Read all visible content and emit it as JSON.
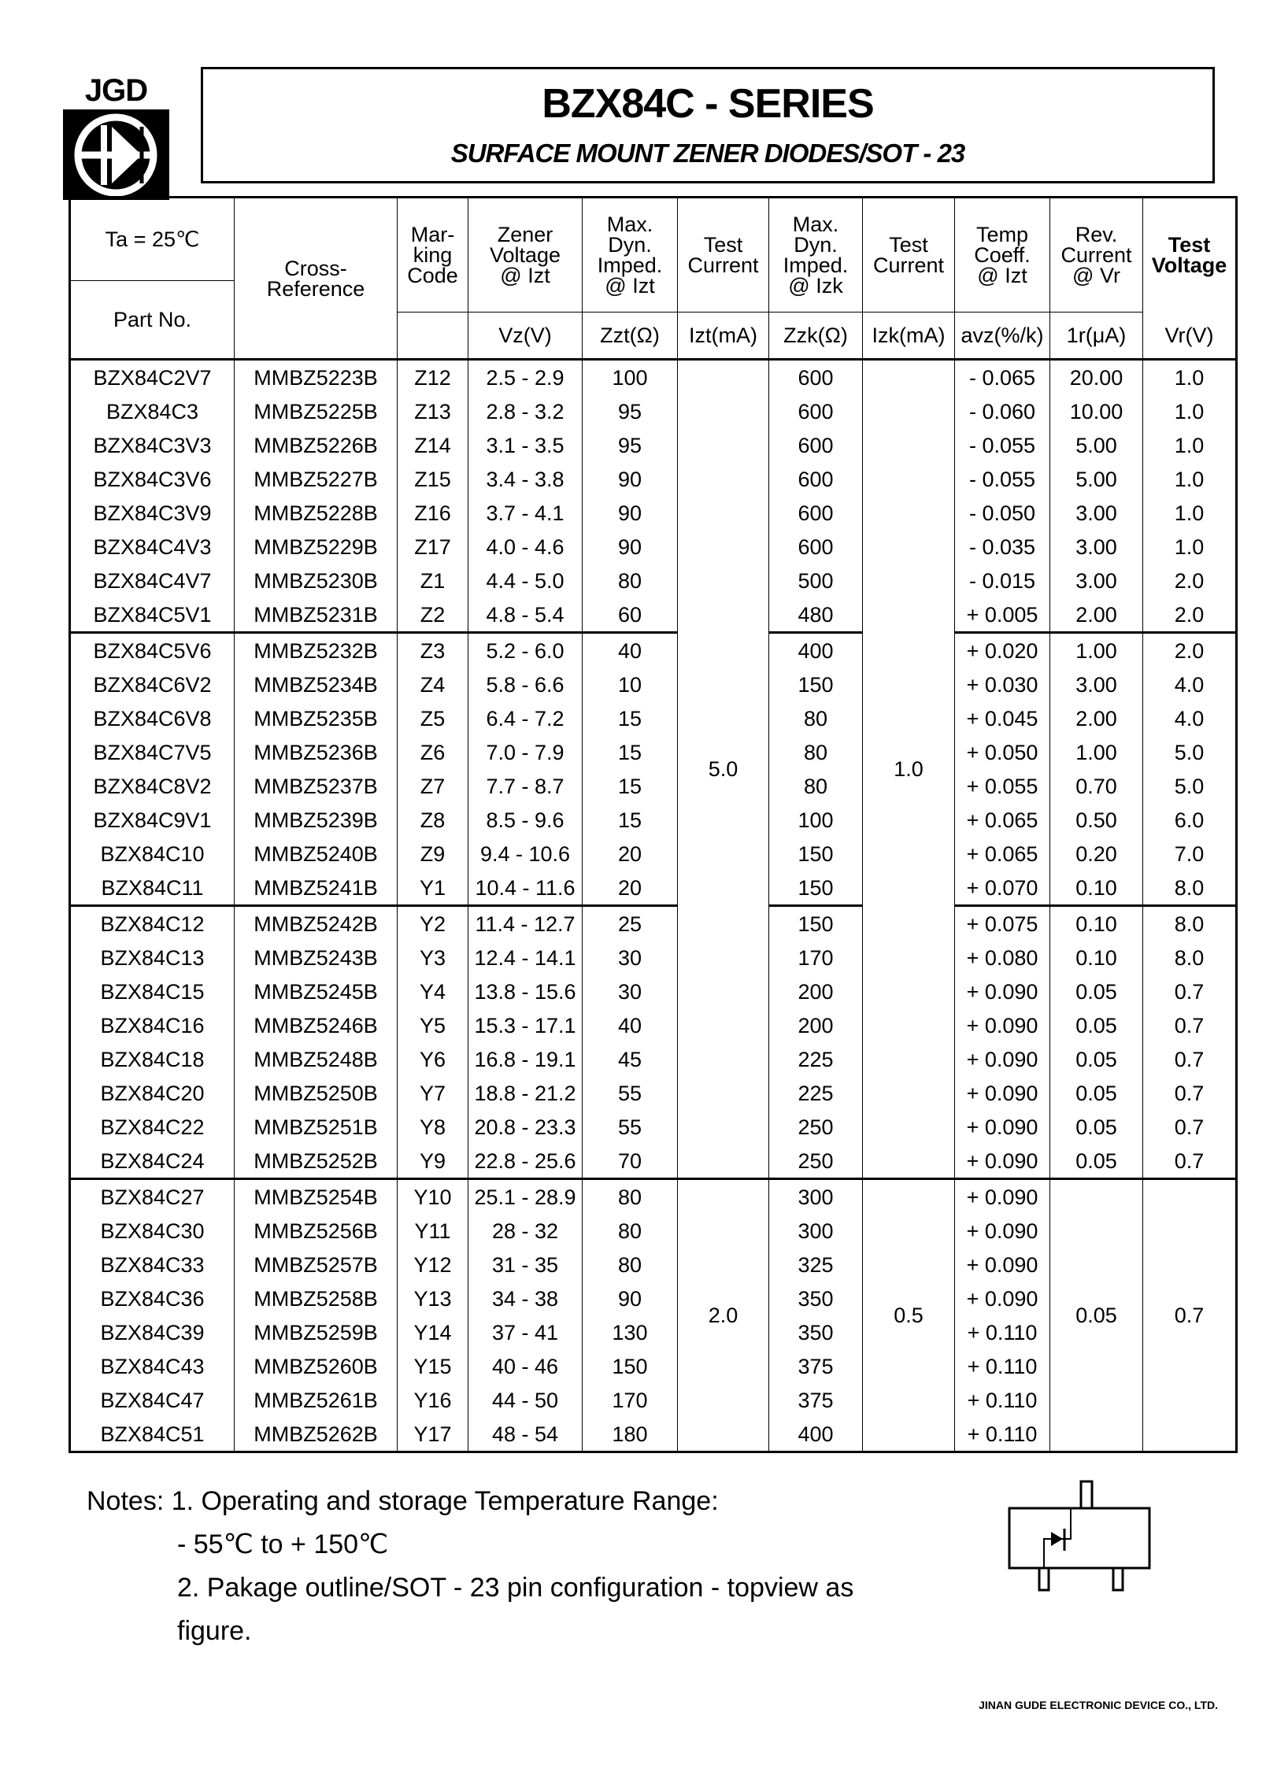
{
  "logo": {
    "text": "JGD"
  },
  "title": "BZX84C - SERIES",
  "subtitle": "SURFACE MOUNT ZENER DIODES/SOT - 23",
  "table": {
    "headers": {
      "ta": "Ta = 25℃",
      "part": "Part No.",
      "cross": "Cross-\nReference",
      "mark": "Mar-\nking\nCode",
      "zener": "Zener\nVoltage\n@ Izt",
      "zzt": "Max. Dyn.\nImped.\n@ Izt",
      "izt": "Test\nCurrent",
      "zzk": "Max. Dyn.\nImped.\n@ Izk",
      "izk": "Test\nCurrent",
      "temp": "Temp\nCoeff.\n@ Izt",
      "rev": "Rev.\nCurrent\n@ Vr",
      "vr": "Test\nVoltage",
      "vr_unit": "Vr(V)",
      "units": [
        "Vz(V)",
        "Zzt(Ω)",
        "Izt(mA)",
        "Zzk(Ω)",
        "Izk(mA)",
        "avz(%/k)",
        "1r(μA)"
      ]
    },
    "merged": {
      "izt_a": "5.0",
      "izk_a": "1.0",
      "izt_b": "2.0",
      "izk_b": "0.5",
      "ir_b": "0.05",
      "vr_b": "0.7"
    },
    "rows": [
      [
        "BZX84C2V7",
        "MMBZ5223B",
        "Z12",
        "2.5 - 2.9",
        "100",
        "600",
        "- 0.065",
        "20.00",
        "1.0"
      ],
      [
        "BZX84C3",
        "MMBZ5225B",
        "Z13",
        "2.8 - 3.2",
        "95",
        "600",
        "- 0.060",
        "10.00",
        "1.0"
      ],
      [
        "BZX84C3V3",
        "MMBZ5226B",
        "Z14",
        "3.1 - 3.5",
        "95",
        "600",
        "- 0.055",
        "5.00",
        "1.0"
      ],
      [
        "BZX84C3V6",
        "MMBZ5227B",
        "Z15",
        "3.4 - 3.8",
        "90",
        "600",
        "- 0.055",
        "5.00",
        "1.0"
      ],
      [
        "BZX84C3V9",
        "MMBZ5228B",
        "Z16",
        "3.7 - 4.1",
        "90",
        "600",
        "- 0.050",
        "3.00",
        "1.0"
      ],
      [
        "BZX84C4V3",
        "MMBZ5229B",
        "Z17",
        "4.0 - 4.6",
        "90",
        "600",
        "- 0.035",
        "3.00",
        "1.0"
      ],
      [
        "BZX84C4V7",
        "MMBZ5230B",
        "Z1",
        "4.4 - 5.0",
        "80",
        "500",
        "- 0.015",
        "3.00",
        "2.0"
      ],
      [
        "BZX84C5V1",
        "MMBZ5231B",
        "Z2",
        "4.8 - 5.4",
        "60",
        "480",
        "+ 0.005",
        "2.00",
        "2.0"
      ],
      [
        "BZX84C5V6",
        "MMBZ5232B",
        "Z3",
        "5.2 - 6.0",
        "40",
        "400",
        "+ 0.020",
        "1.00",
        "2.0"
      ],
      [
        "BZX84C6V2",
        "MMBZ5234B",
        "Z4",
        "5.8 - 6.6",
        "10",
        "150",
        "+ 0.030",
        "3.00",
        "4.0"
      ],
      [
        "BZX84C6V8",
        "MMBZ5235B",
        "Z5",
        "6.4 - 7.2",
        "15",
        "80",
        "+ 0.045",
        "2.00",
        "4.0"
      ],
      [
        "BZX84C7V5",
        "MMBZ5236B",
        "Z6",
        "7.0 - 7.9",
        "15",
        "80",
        "+ 0.050",
        "1.00",
        "5.0"
      ],
      [
        "BZX84C8V2",
        "MMBZ5237B",
        "Z7",
        "7.7 - 8.7",
        "15",
        "80",
        "+ 0.055",
        "0.70",
        "5.0"
      ],
      [
        "BZX84C9V1",
        "MMBZ5239B",
        "Z8",
        "8.5 - 9.6",
        "15",
        "100",
        "+ 0.065",
        "0.50",
        "6.0"
      ],
      [
        "BZX84C10",
        "MMBZ5240B",
        "Z9",
        "9.4 - 10.6",
        "20",
        "150",
        "+ 0.065",
        "0.20",
        "7.0"
      ],
      [
        "BZX84C11",
        "MMBZ5241B",
        "Y1",
        "10.4 - 11.6",
        "20",
        "150",
        "+ 0.070",
        "0.10",
        "8.0"
      ],
      [
        "BZX84C12",
        "MMBZ5242B",
        "Y2",
        "11.4 - 12.7",
        "25",
        "150",
        "+ 0.075",
        "0.10",
        "8.0"
      ],
      [
        "BZX84C13",
        "MMBZ5243B",
        "Y3",
        "12.4 - 14.1",
        "30",
        "170",
        "+ 0.080",
        "0.10",
        "8.0"
      ],
      [
        "BZX84C15",
        "MMBZ5245B",
        "Y4",
        "13.8 - 15.6",
        "30",
        "200",
        "+ 0.090",
        "0.05",
        "0.7"
      ],
      [
        "BZX84C16",
        "MMBZ5246B",
        "Y5",
        "15.3 - 17.1",
        "40",
        "200",
        "+ 0.090",
        "0.05",
        "0.7"
      ],
      [
        "BZX84C18",
        "MMBZ5248B",
        "Y6",
        "16.8 - 19.1",
        "45",
        "225",
        "+ 0.090",
        "0.05",
        "0.7"
      ],
      [
        "BZX84C20",
        "MMBZ5250B",
        "Y7",
        "18.8 - 21.2",
        "55",
        "225",
        "+ 0.090",
        "0.05",
        "0.7"
      ],
      [
        "BZX84C22",
        "MMBZ5251B",
        "Y8",
        "20.8 - 23.3",
        "55",
        "250",
        "+ 0.090",
        "0.05",
        "0.7"
      ],
      [
        "BZX84C24",
        "MMBZ5252B",
        "Y9",
        "22.8 - 25.6",
        "70",
        "250",
        "+ 0.090",
        "0.05",
        "0.7"
      ],
      [
        "BZX84C27",
        "MMBZ5254B",
        "Y10",
        "25.1 - 28.9",
        "80",
        "300",
        "+ 0.090"
      ],
      [
        "BZX84C30",
        "MMBZ5256B",
        "Y11",
        "28 - 32",
        "80",
        "300",
        "+ 0.090"
      ],
      [
        "BZX84C33",
        "MMBZ5257B",
        "Y12",
        "31 - 35",
        "80",
        "325",
        "+ 0.090"
      ],
      [
        "BZX84C36",
        "MMBZ5258B",
        "Y13",
        "34 - 38",
        "90",
        "350",
        "+ 0.090"
      ],
      [
        "BZX84C39",
        "MMBZ5259B",
        "Y14",
        "37 - 41",
        "130",
        "350",
        "+ 0.110"
      ],
      [
        "BZX84C43",
        "MMBZ5260B",
        "Y15",
        "40 - 46",
        "150",
        "375",
        "+ 0.110"
      ],
      [
        "BZX84C47",
        "MMBZ5261B",
        "Y16",
        "44 - 50",
        "170",
        "375",
        "+ 0.110"
      ],
      [
        "BZX84C51",
        "MMBZ5262B",
        "Y17",
        "48 - 54",
        "180",
        "400",
        "+ 0.110"
      ]
    ]
  },
  "notes": {
    "n1": "Notes: 1. Operating and storage Temperature Range:",
    "n1b": "- 55℃ to + 150℃",
    "n2": "2. Pakage outline/SOT - 23 pin configuration - topview as",
    "n2b": "figure."
  },
  "footer": "JINAN GUDE ELECTRONIC DEVICE CO., LTD."
}
